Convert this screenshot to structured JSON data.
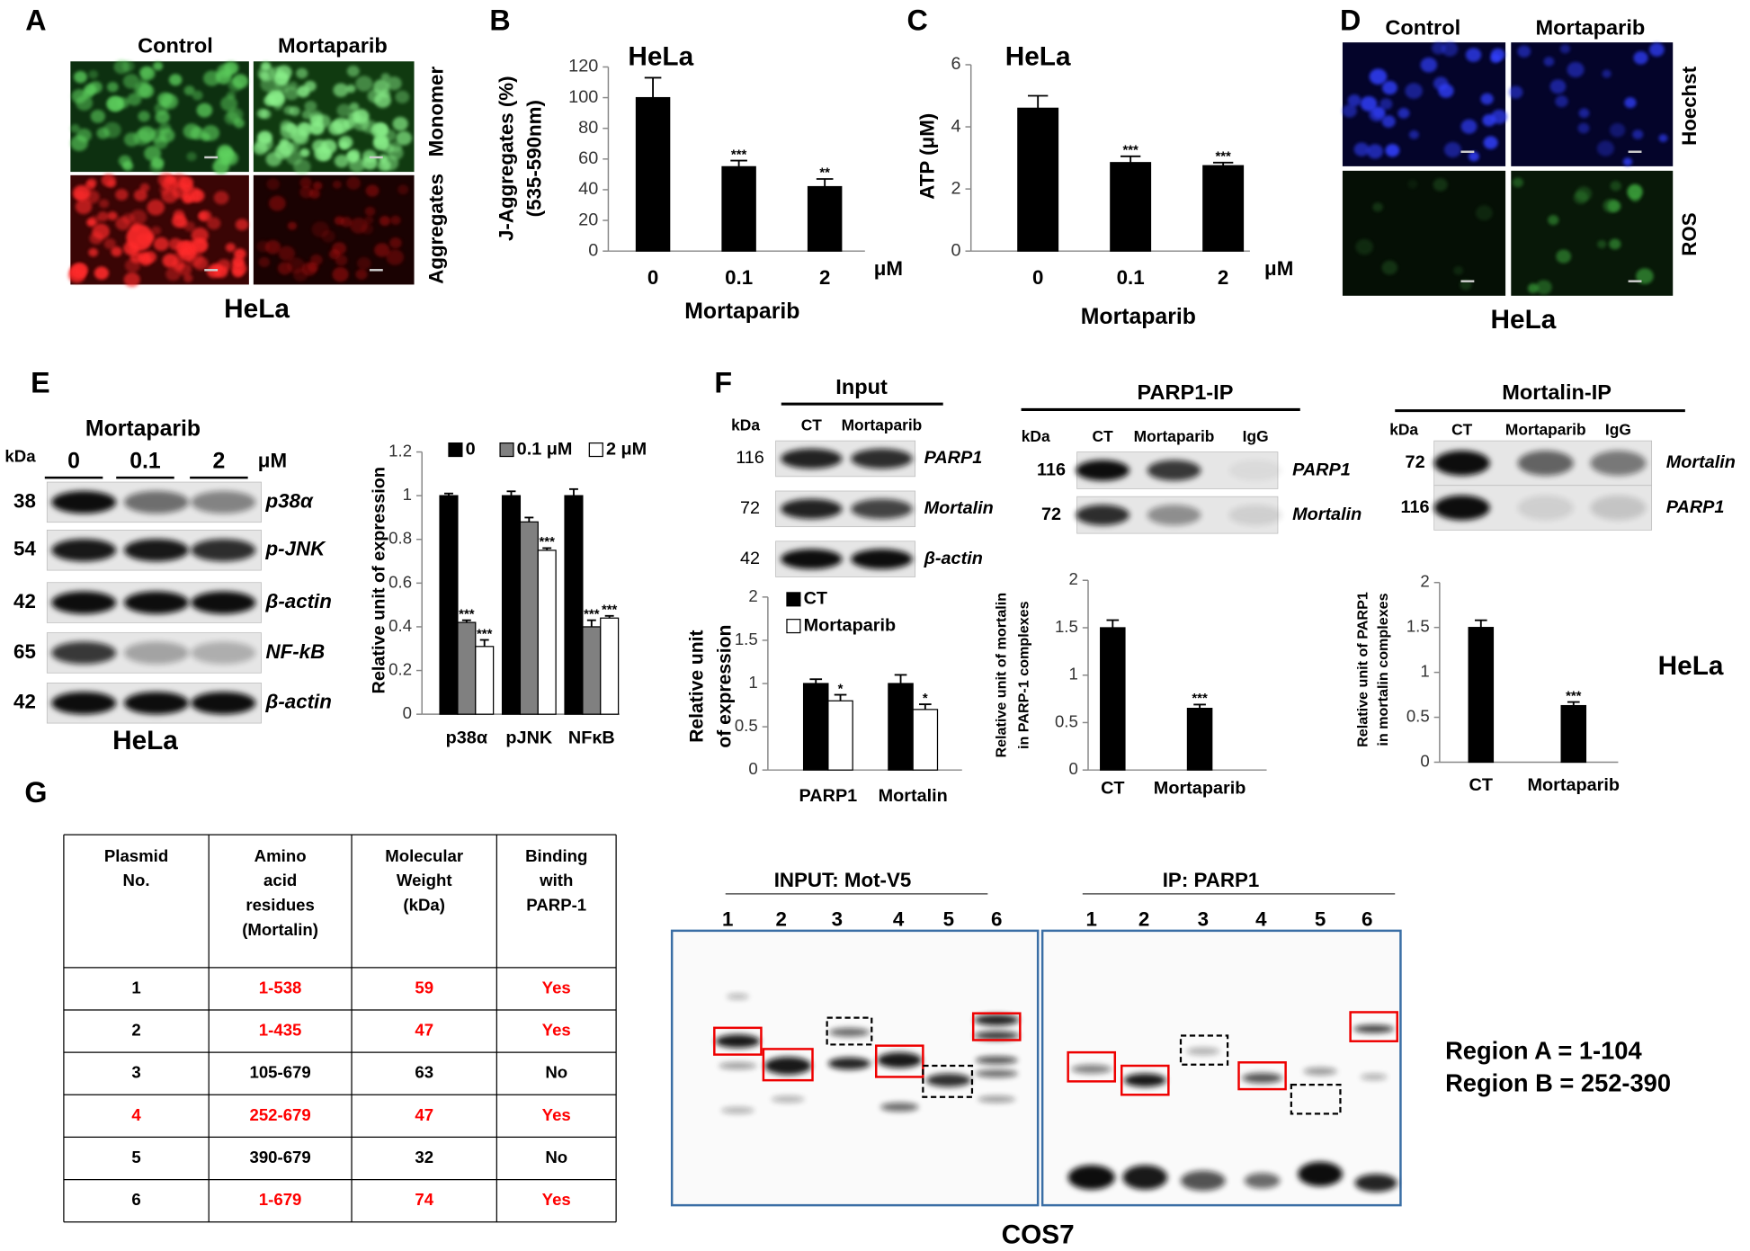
{
  "chart_data": [
    {
      "panel": "B",
      "type": "bar",
      "title": "HeLa",
      "y_label": [
        "J-Aggregates (%)",
        "(535-590nm)"
      ],
      "x_label": "Mortaparib",
      "unit": "μM",
      "categories": [
        "0",
        "0.1",
        "2"
      ],
      "values": [
        100,
        55,
        42
      ],
      "errors": [
        13,
        4,
        5
      ],
      "significance": [
        null,
        "***",
        "**"
      ],
      "color": "#000000",
      "ylim": [
        0,
        120
      ],
      "yticks": [
        0,
        20,
        40,
        60,
        80,
        100,
        120
      ]
    },
    {
      "panel": "C",
      "type": "bar",
      "title": "HeLa",
      "y_label": [
        "ATP (μM)"
      ],
      "x_label": "Mortaparib",
      "unit": "μM",
      "categories": [
        "0",
        "0.1",
        "2"
      ],
      "values": [
        4.6,
        2.85,
        2.75
      ],
      "errors": [
        0.4,
        0.2,
        0.1
      ],
      "significance": [
        null,
        "***",
        "***"
      ],
      "color": "#000000",
      "ylim": [
        0,
        6
      ],
      "yticks": [
        0,
        2,
        4,
        6
      ]
    },
    {
      "type": "grouped_bar",
      "y_label": [
        "Relative unit of expression"
      ],
      "categories": [
        "p38α",
        "pJNK",
        "NFκB"
      ],
      "series": [
        {
          "name": "0",
          "color": "#000000",
          "values": [
            1,
            1,
            1
          ],
          "errors": [
            0.01,
            0.02,
            0.03
          ],
          "significance": [
            null,
            null,
            null
          ]
        },
        {
          "name": "0.1 μM",
          "color": "#808080",
          "values": [
            0.42,
            0.88,
            0.4
          ],
          "errors": [
            0.01,
            0.02,
            0.03
          ],
          "significance": [
            "***",
            null,
            "***"
          ]
        },
        {
          "name": "2 μM",
          "color": "#ffffff",
          "values": [
            0.31,
            0.75,
            0.44
          ],
          "errors": [
            0.03,
            0.01,
            0.01
          ],
          "significance": [
            "***",
            "***",
            "***"
          ]
        }
      ],
      "ylim": [
        0,
        1.2
      ],
      "yticks": [
        0,
        0.2,
        0.4,
        0.6,
        0.8,
        1,
        1.2
      ]
    },
    {
      "type": "grouped_bar",
      "y_label": [
        "Relative unit",
        "of expression"
      ],
      "categories": [
        "PARP1",
        "Mortalin"
      ],
      "series": [
        {
          "name": "CT",
          "color": "#000000",
          "values": [
            1,
            1
          ],
          "errors": [
            0.05,
            0.1
          ],
          "significance": [
            null,
            null
          ]
        },
        {
          "name": "Mortaparib",
          "color": "#ffffff",
          "values": [
            0.8,
            0.7
          ],
          "errors": [
            0.07,
            0.06
          ],
          "significance": [
            "*",
            "*"
          ]
        }
      ],
      "ylim": [
        0,
        2
      ],
      "yticks": [
        0,
        0.5,
        1,
        1.5,
        2
      ]
    },
    {
      "type": "bar",
      "y_label": [
        "Relative unit of mortalin",
        "in PARP-1 complexes"
      ],
      "categories": [
        "CT",
        "Mortaparib"
      ],
      "values": [
        1.5,
        0.65
      ],
      "errors": [
        0.08,
        0.04
      ],
      "significance": [
        null,
        "***"
      ],
      "color": "#000000",
      "ylim": [
        0,
        2
      ],
      "yticks": [
        0,
        0.5,
        1,
        1.5,
        2
      ]
    },
    {
      "type": "bar",
      "y_label": [
        "Relative unit of PARP1",
        "in mortalin complexes"
      ],
      "categories": [
        "CT",
        "Mortaparib"
      ],
      "values": [
        1.5,
        0.63
      ],
      "errors": [
        0.08,
        0.04
      ],
      "significance": [
        null,
        "***"
      ],
      "color": "#000000",
      "ylim": [
        0,
        2
      ],
      "yticks": [
        0,
        0.5,
        1,
        1.5,
        2
      ]
    }
  ],
  "panels": {
    "A": {
      "label": "A",
      "columns": [
        "Control",
        "Mortaparib"
      ],
      "rows": [
        "Monomer",
        "Aggregates"
      ],
      "cell_line": "HeLa"
    },
    "D": {
      "label": "D",
      "columns": [
        "Control",
        "Mortaparib"
      ],
      "rows": [
        "Hoechst",
        "ROS"
      ],
      "cell_line": "HeLa"
    },
    "E": {
      "label": "E",
      "treatment": "Mortaparib",
      "lanes": [
        "0",
        "0.1",
        "2"
      ],
      "unit": "μM",
      "kda_header": "kDa",
      "blots": [
        {
          "kda": 38,
          "protein": "p38α"
        },
        {
          "kda": 54,
          "protein": "p-JNK"
        },
        {
          "kda": 42,
          "protein": "β-actin"
        },
        {
          "kda": 65,
          "protein": "NF-kB"
        },
        {
          "kda": 42,
          "protein": "β-actin"
        }
      ],
      "cell_line": "HeLa"
    },
    "F": {
      "label": "F",
      "cell_line": "HeLa",
      "blots": [
        {
          "title": "Input",
          "kda_header": "kDa",
          "lanes": [
            "CT",
            "Mortaparib"
          ],
          "rows": [
            {
              "kda": 116,
              "protein": "PARP1"
            },
            {
              "kda": 72,
              "protein": "Mortalin"
            },
            {
              "kda": 42,
              "protein": "β-actin"
            }
          ]
        },
        {
          "title": "PARP1-IP",
          "kda_header": "kDa",
          "lanes": [
            "CT",
            "Mortaparib",
            "IgG"
          ],
          "rows": [
            {
              "kda": 116,
              "protein": "PARP1"
            },
            {
              "kda": 72,
              "protein": "Mortalin"
            }
          ]
        },
        {
          "title": "Mortalin-IP",
          "kda_header": "kDa",
          "lanes": [
            "CT",
            "Mortaparib",
            "IgG"
          ],
          "rows": [
            {
              "kda": 72,
              "protein": "Mortalin"
            },
            {
              "kda": 116,
              "protein": "PARP1"
            }
          ]
        }
      ]
    },
    "G": {
      "label": "G",
      "table": {
        "header": [
          [
            "Plasmid",
            "No."
          ],
          [
            "Amino",
            "acid",
            "residues",
            "(Mortalin)"
          ],
          [
            "Molecular",
            "Weight",
            "(kDa)"
          ],
          [
            "Binding",
            "with",
            "PARP-1"
          ]
        ],
        "rows": [
          [
            "1",
            "1-538",
            "59",
            "Yes"
          ],
          [
            "2",
            "1-435",
            "47",
            "Yes"
          ],
          [
            "3",
            "105-679",
            "63",
            "No"
          ],
          [
            "4",
            "252-679",
            "47",
            "Yes"
          ],
          [
            "5",
            "390-679",
            "32",
            "No"
          ],
          [
            "6",
            "1-679",
            "74",
            "Yes"
          ]
        ],
        "cell_colors": [
          [
            "#000000",
            "#ff0000",
            "#ff0000",
            "#ff0000"
          ],
          [
            "#000000",
            "#ff0000",
            "#ff0000",
            "#ff0000"
          ],
          [
            "#000000",
            "#000000",
            "#000000",
            "#000000"
          ],
          [
            "#ff0000",
            "#ff0000",
            "#ff0000",
            "#ff0000"
          ],
          [
            "#000000",
            "#000000",
            "#000000",
            "#000000"
          ],
          [
            "#000000",
            "#ff0000",
            "#ff0000",
            "#ff0000"
          ]
        ]
      },
      "gel": {
        "groups": [
          {
            "title": "INPUT: Mot-V5",
            "lanes": [
              "1",
              "2",
              "3",
              "4",
              "5",
              "6"
            ]
          },
          {
            "title": "IP: PARP1",
            "lanes": [
              "1",
              "2",
              "3",
              "4",
              "5",
              "6"
            ]
          }
        ],
        "cell_line": "COS7",
        "notes": [
          "Region A = 1-104",
          "Region B = 252-390"
        ]
      }
    }
  }
}
